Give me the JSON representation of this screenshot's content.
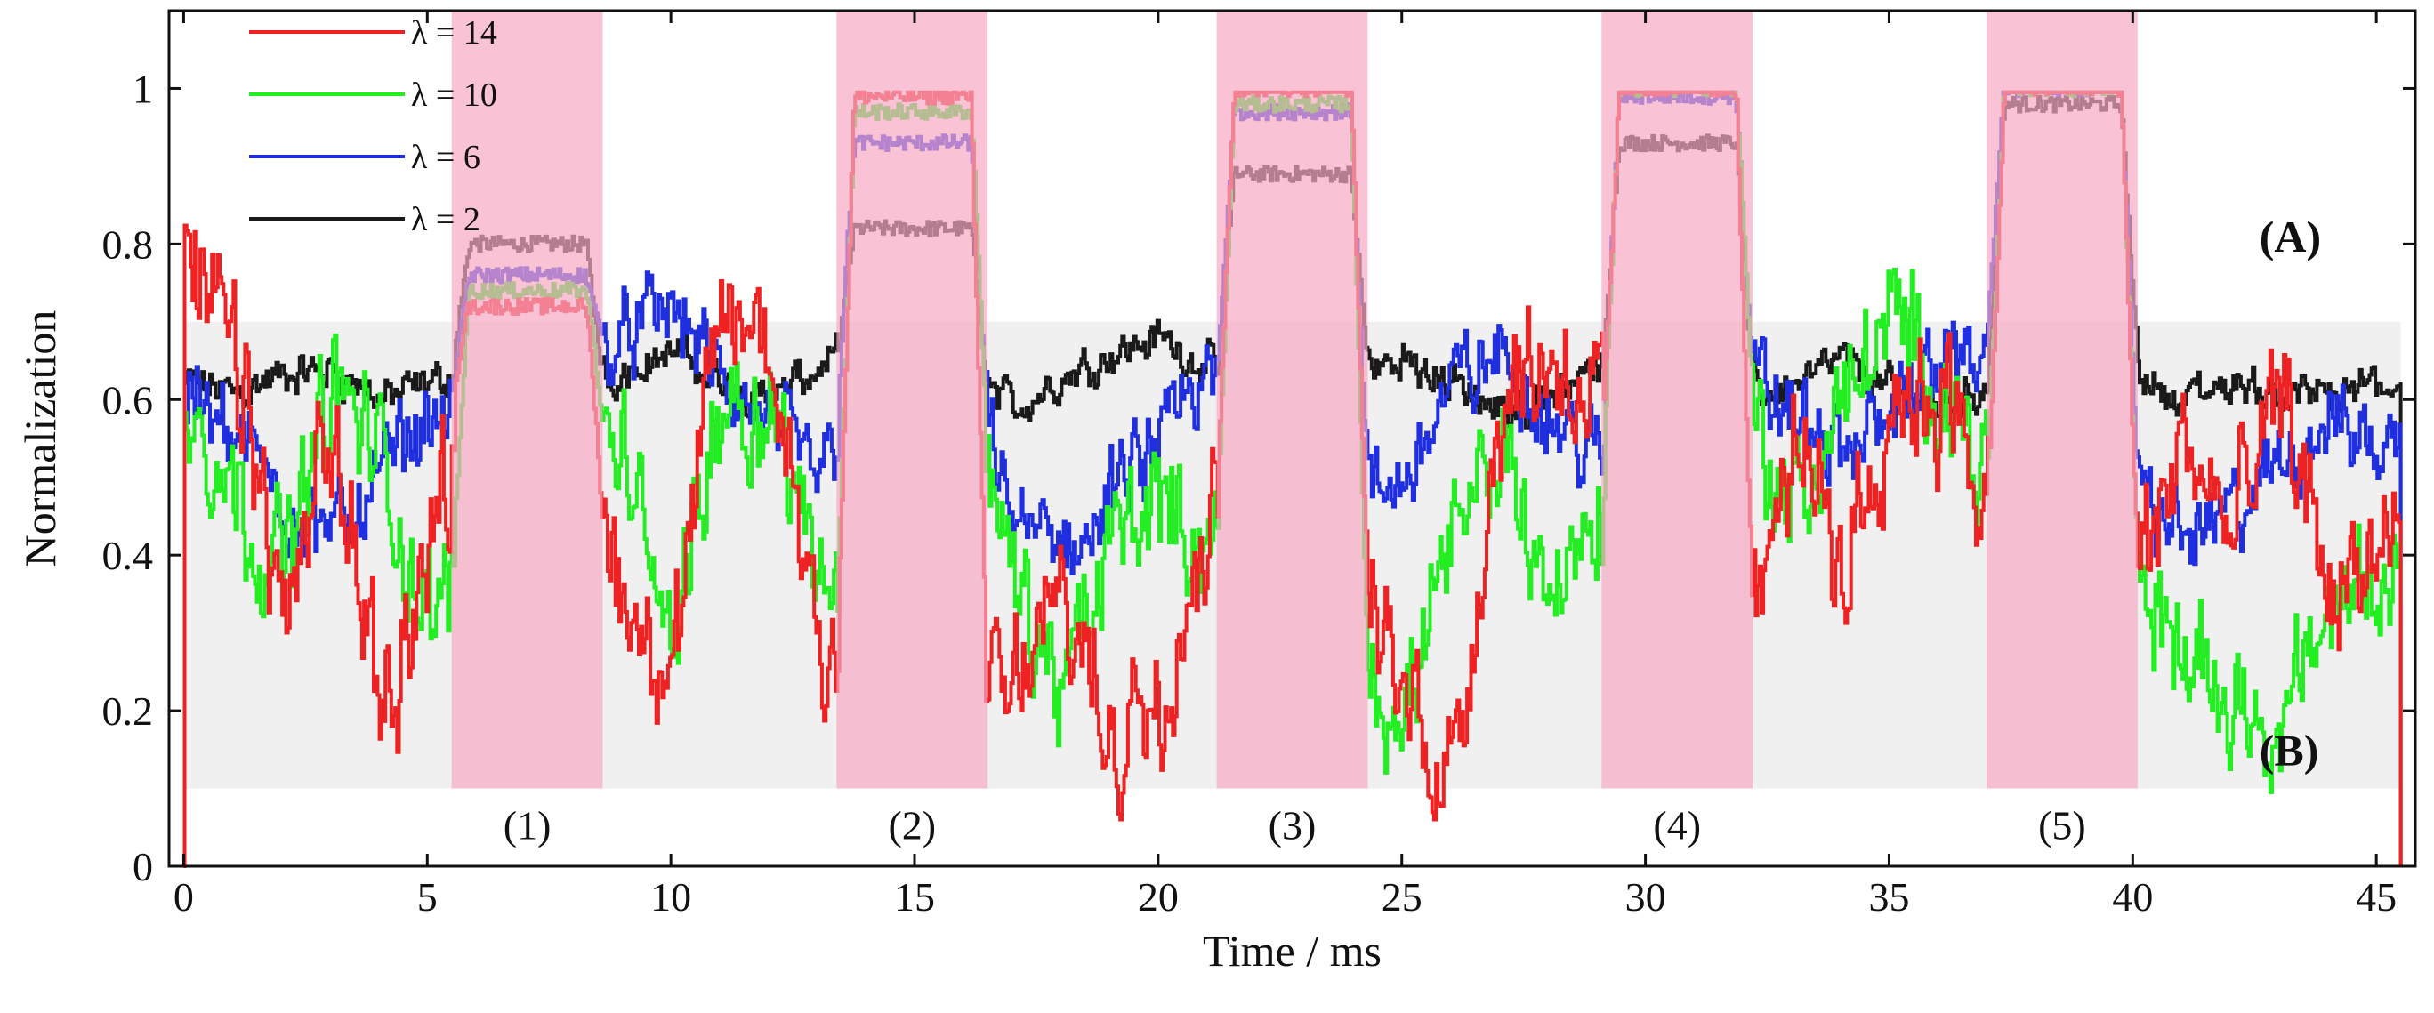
{
  "chart_data": {
    "type": "line",
    "xlabel": "Time / ms",
    "ylabel": "Normalization",
    "xlim": [
      -0.3,
      45.8
    ],
    "ylim": [
      0,
      1.1
    ],
    "xticks": [
      0,
      5,
      10,
      15,
      20,
      25,
      30,
      35,
      40,
      45
    ],
    "yticks": [
      0,
      0.2,
      0.4,
      0.6,
      0.8,
      1
    ],
    "ytick_labels": [
      "0",
      "0.2",
      "0.4",
      "0.6",
      "0.8",
      "1"
    ],
    "legend_position": "top-left",
    "band": {
      "name": "(B)",
      "y_range": [
        0.1,
        0.7
      ],
      "x_range": [
        0,
        45.5
      ],
      "color": "#f0f0f0"
    },
    "regions": [
      {
        "label": "(1)",
        "x_range": [
          5.5,
          8.6
        ]
      },
      {
        "label": "(2)",
        "x_range": [
          13.4,
          16.5
        ]
      },
      {
        "label": "(3)",
        "x_range": [
          21.2,
          24.3
        ]
      },
      {
        "label": "(4)",
        "x_range": [
          29.1,
          32.2
        ]
      },
      {
        "label": "(5)",
        "x_range": [
          37.0,
          40.1
        ]
      }
    ],
    "region_color": "#f7a8c3",
    "annotations": [
      {
        "text": "(A)",
        "x": 42.6,
        "y": 0.79
      },
      {
        "text": "(B)",
        "x": 42.6,
        "y": 0.13
      }
    ],
    "series": [
      {
        "name": "λ = 2",
        "lambda": "2",
        "color": "#1a1a1a",
        "baseline": [
          0.62,
          0.61,
          0.63,
          0.64,
          0.6,
          0.62,
          0.65,
          0.63,
          0.61,
          0.64,
          0.66,
          0.62,
          0.6,
          0.64,
          0.67,
          0.65,
          0.62,
          0.59,
          0.63,
          0.66,
          0.68,
          0.64,
          0.61,
          0.6,
          0.63,
          0.65,
          0.62,
          0.58,
          0.61,
          0.64,
          0.66,
          0.63,
          0.6,
          0.62,
          0.65,
          0.61,
          0.59,
          0.62,
          0.64,
          0.66,
          0.63,
          0.6,
          0.62,
          0.61,
          0.6,
          0.62
        ],
        "plateaus": [
          0.8,
          0.82,
          0.89,
          0.93,
          0.98
        ],
        "noise": 0.035
      },
      {
        "name": "λ = 6",
        "lambda": "6",
        "color": "#1f2fe0",
        "baseline": [
          0.62,
          0.55,
          0.48,
          0.42,
          0.5,
          0.58,
          0.62,
          0.7,
          0.66,
          0.68,
          0.72,
          0.62,
          0.56,
          0.5,
          0.66,
          0.72,
          0.6,
          0.45,
          0.4,
          0.47,
          0.55,
          0.62,
          0.68,
          0.56,
          0.44,
          0.5,
          0.62,
          0.66,
          0.58,
          0.52,
          0.62,
          0.68,
          0.62,
          0.58,
          0.52,
          0.6,
          0.64,
          0.68,
          0.62,
          0.56,
          0.48,
          0.42,
          0.45,
          0.52,
          0.58,
          0.54
        ],
        "plateaus": [
          0.76,
          0.93,
          0.97,
          0.99,
          1.0
        ],
        "noise": 0.075
      },
      {
        "name": "λ = 10",
        "lambda": "10",
        "color": "#22ee22",
        "baseline": [
          0.62,
          0.48,
          0.38,
          0.62,
          0.52,
          0.3,
          0.45,
          0.55,
          0.65,
          0.5,
          0.3,
          0.62,
          0.58,
          0.4,
          0.28,
          0.55,
          0.62,
          0.35,
          0.22,
          0.42,
          0.48,
          0.4,
          0.55,
          0.35,
          0.24,
          0.2,
          0.4,
          0.55,
          0.35,
          0.45,
          0.6,
          0.66,
          0.6,
          0.45,
          0.6,
          0.7,
          0.62,
          0.5,
          0.36,
          0.5,
          0.36,
          0.28,
          0.22,
          0.18,
          0.32,
          0.4
        ],
        "plateaus": [
          0.74,
          0.97,
          0.98,
          1.0,
          1.0
        ],
        "noise": 0.11
      },
      {
        "name": "λ = 14",
        "lambda": "14",
        "color": "#ee2222",
        "baseline": [
          0.75,
          0.66,
          0.3,
          0.55,
          0.2,
          0.4,
          0.72,
          0.8,
          0.55,
          0.35,
          0.25,
          0.72,
          0.66,
          0.3,
          0.25,
          0.3,
          0.18,
          0.22,
          0.35,
          0.15,
          0.25,
          0.45,
          0.6,
          0.28,
          0.35,
          0.22,
          0.12,
          0.62,
          0.66,
          0.6,
          0.32,
          0.45,
          0.28,
          0.55,
          0.38,
          0.6,
          0.62,
          0.45,
          0.3,
          0.55,
          0.35,
          0.55,
          0.42,
          0.6,
          0.35,
          0.4
        ],
        "plateaus": [
          0.72,
          0.99,
          1.0,
          1.0,
          1.0
        ],
        "noise": 0.12
      }
    ]
  }
}
